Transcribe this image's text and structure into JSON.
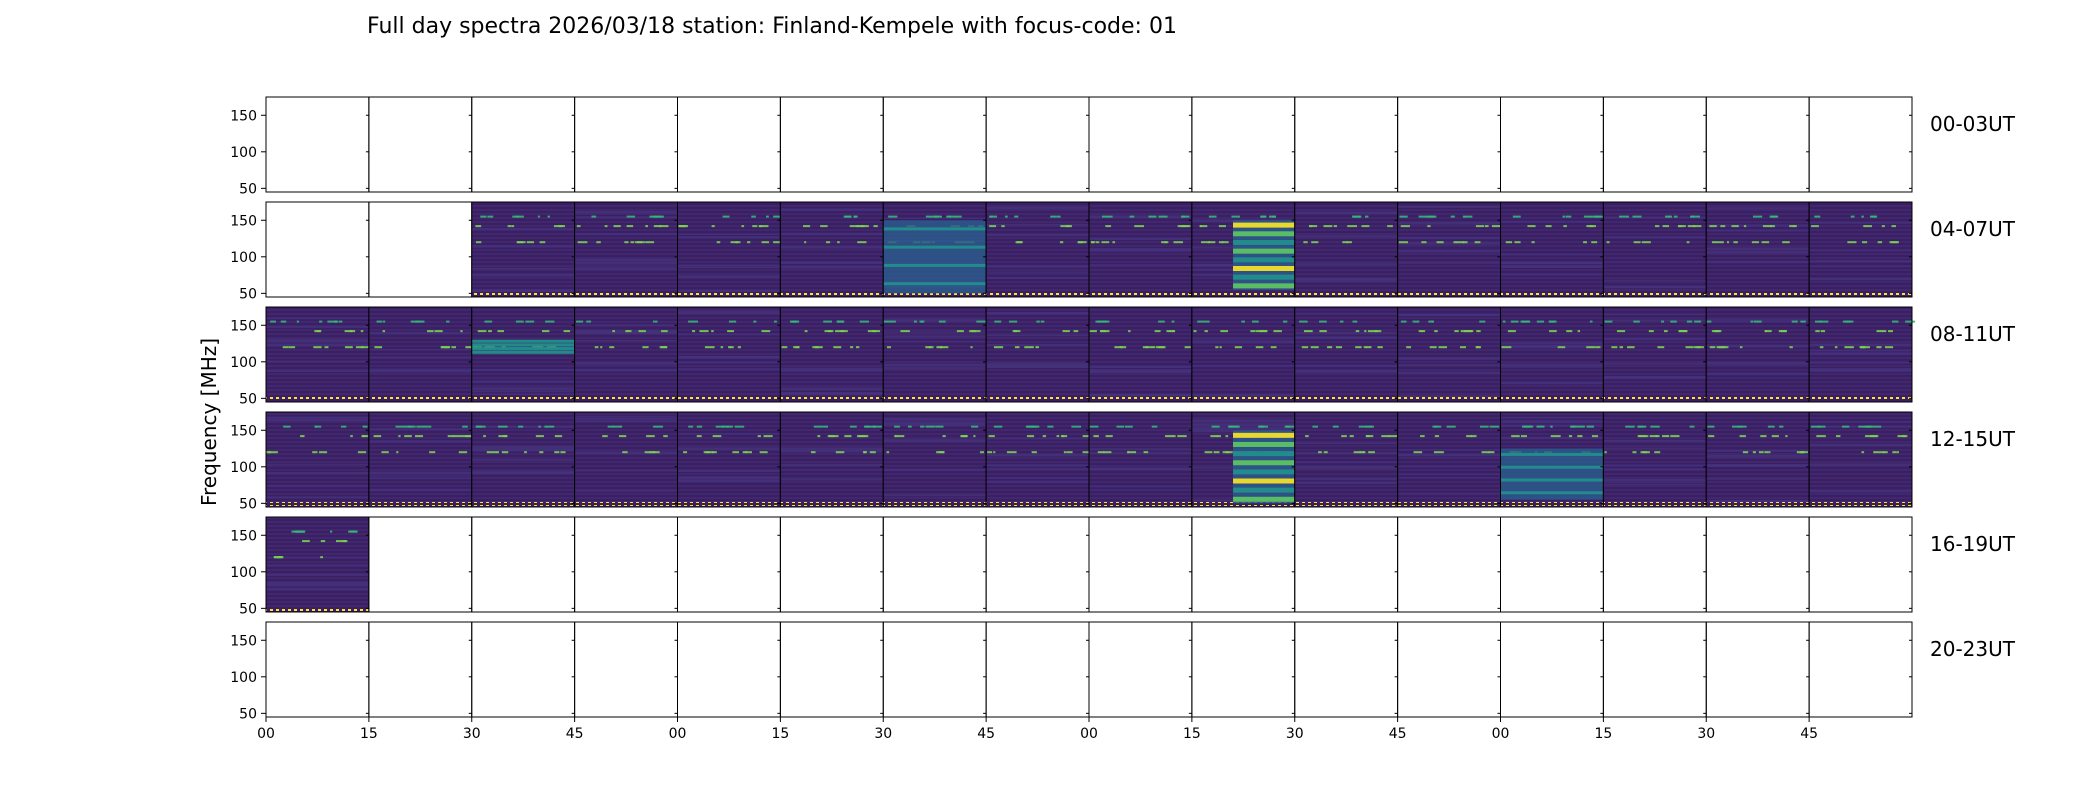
{
  "title": "Full day spectra 2026/03/18 station: Finland-Kempele with focus-code: 01",
  "chart_data": {
    "type": "heatmap",
    "title": "Full day spectra 2026/03/18 station: Finland-Kempele with focus-code: 01",
    "ylabel": "Frequency [MHz]",
    "ylim": [
      45,
      175
    ],
    "yticks": [
      50,
      100,
      150
    ],
    "xticklabels": [
      "00",
      "15",
      "30",
      "45",
      "00",
      "15",
      "30",
      "45",
      "00",
      "15",
      "30",
      "45",
      "00",
      "15",
      "30",
      "45"
    ],
    "colormap": "viridis",
    "colors": {
      "background": "#3b1f66",
      "band_low": "#2f6c8e",
      "band_mid": "#21918c",
      "band_high": "#5ec962",
      "saturated": "#fde725"
    },
    "rows": [
      {
        "label": "00-03UT",
        "filled": [
          false,
          false,
          false,
          false,
          false,
          false,
          false,
          false,
          false,
          false,
          false,
          false,
          false,
          false,
          false,
          false
        ]
      },
      {
        "label": "04-07UT",
        "filled": [
          false,
          false,
          true,
          true,
          true,
          true,
          true,
          true,
          true,
          true,
          true,
          true,
          true,
          true,
          true,
          true
        ]
      },
      {
        "label": "08-11UT",
        "filled": [
          true,
          true,
          true,
          true,
          true,
          true,
          true,
          true,
          true,
          true,
          true,
          true,
          true,
          true,
          true,
          true
        ]
      },
      {
        "label": "12-15UT",
        "filled": [
          true,
          true,
          true,
          true,
          true,
          true,
          true,
          true,
          true,
          true,
          true,
          true,
          true,
          true,
          true,
          true
        ]
      },
      {
        "label": "16-19UT",
        "filled": [
          true,
          false,
          false,
          false,
          false,
          false,
          false,
          false,
          false,
          false,
          false,
          false,
          false,
          false,
          false,
          false
        ]
      },
      {
        "label": "20-23UT",
        "filled": [
          false,
          false,
          false,
          false,
          false,
          false,
          false,
          false,
          false,
          false,
          false,
          false,
          false,
          false,
          false,
          false
        ]
      }
    ],
    "burst_panels": [
      {
        "row": 1,
        "col": 6,
        "level": "moderate",
        "band_mhz": [
          50,
          150
        ]
      },
      {
        "row": 1,
        "col": 9,
        "level": "strong",
        "band_mhz": [
          55,
          150
        ]
      },
      {
        "row": 2,
        "col": 2,
        "level": "weak",
        "band_mhz": [
          110,
          130
        ]
      },
      {
        "row": 3,
        "col": 9,
        "level": "strong",
        "band_mhz": [
          50,
          150
        ]
      },
      {
        "row": 3,
        "col": 12,
        "level": "moderate",
        "band_mhz": [
          55,
          125
        ]
      }
    ]
  }
}
